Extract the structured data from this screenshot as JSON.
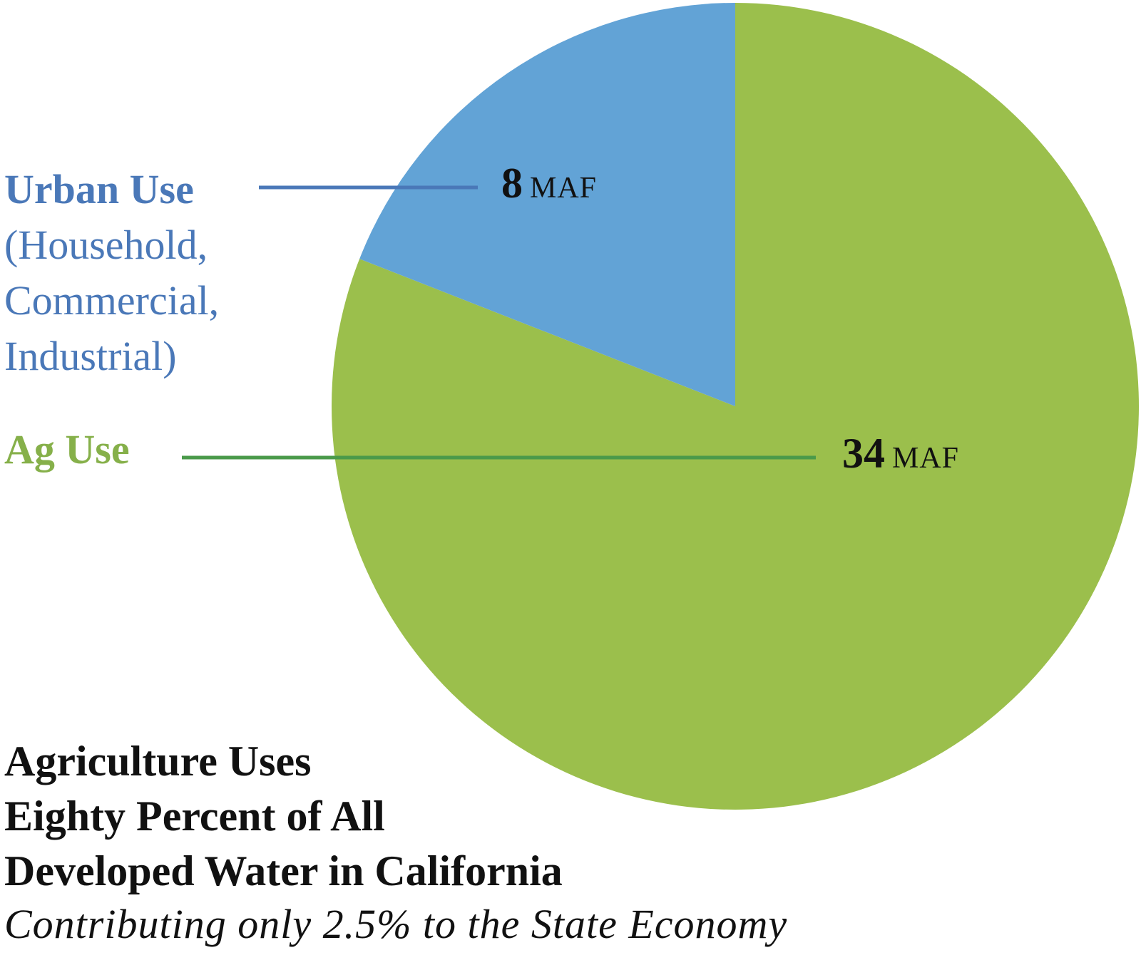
{
  "chart_data": {
    "type": "pie",
    "title_lines": [
      "Agriculture Uses",
      "Eighty Percent of All",
      "Developed Water in California"
    ],
    "subtitle": "Contributing only 2.5% to the State Economy",
    "slices": [
      {
        "name": "Urban Use",
        "detail": "(Household,\nCommercial,\nIndustrial)",
        "value": 8,
        "value_label": "8",
        "unit": "MAF",
        "color": "#62a3d6",
        "label_color": "#4a78b8"
      },
      {
        "name": "Ag Use",
        "value": 34,
        "value_label": "34",
        "unit": "MAF",
        "color": "#9bbf4c",
        "label_color": "#86b04a"
      }
    ],
    "start_angle_deg": 0,
    "direction": "counterclockwise",
    "leader_line_colors": {
      "urban": "#4a78b8",
      "ag": "#4a9a4a"
    }
  }
}
